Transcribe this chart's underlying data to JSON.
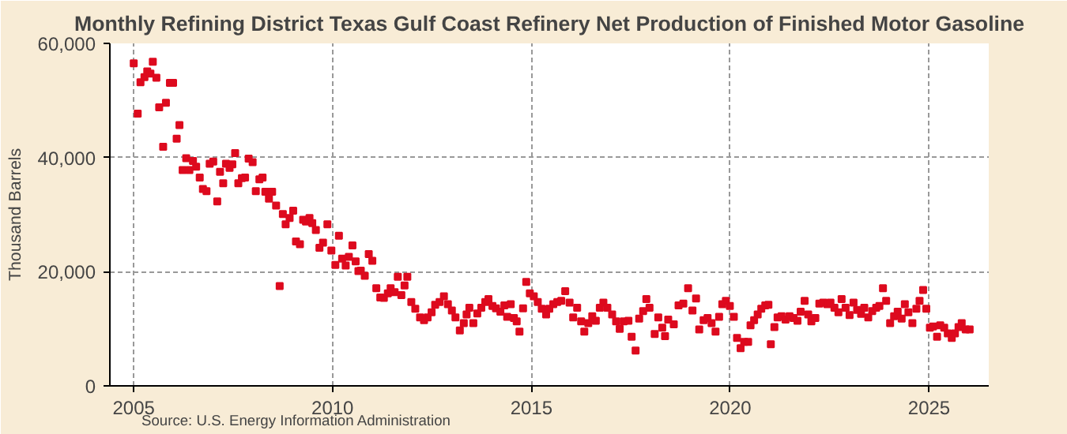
{
  "chart_data": {
    "type": "scatter",
    "title": "Monthly Refining District Texas Gulf Coast Refinery Net Production of Finished Motor Gasoline",
    "ylabel": "Thousand Barrels",
    "annotations": [
      "Source: U.S. Energy Information Administration"
    ],
    "xlim": [
      2004.4,
      2026.5
    ],
    "xticks": [
      2005,
      2010,
      2015,
      2020,
      2025
    ],
    "ylim": [
      0,
      60000
    ],
    "yticks": [
      {
        "value": 0,
        "label": "0"
      },
      {
        "value": 20000,
        "label": "20,000"
      },
      {
        "value": 40000,
        "label": "40,000"
      },
      {
        "value": 60000,
        "label": "60,000"
      }
    ],
    "grid": true,
    "marker": "square",
    "series": [
      {
        "color": "#dd0a1e",
        "x": [
          2005.0,
          2005.1,
          2005.17,
          2005.27,
          2005.34,
          2005.42,
          2005.48,
          2005.57,
          2005.64,
          2005.74,
          2005.81,
          2005.91,
          2005.99,
          2006.08,
          2006.15,
          2006.23,
          2006.32,
          2006.4,
          2006.49,
          2006.57,
          2006.66,
          2006.74,
          2006.83,
          2006.91,
          2007.0,
          2007.1,
          2007.17,
          2007.25,
          2007.32,
          2007.41,
          2007.48,
          2007.55,
          2007.63,
          2007.72,
          2007.8,
          2007.89,
          2007.99,
          2008.07,
          2008.16,
          2008.24,
          2008.31,
          2008.4,
          2008.48,
          2008.58,
          2008.67,
          2008.75,
          2008.82,
          2008.92,
          2009.01,
          2009.08,
          2009.18,
          2009.26,
          2009.33,
          2009.42,
          2009.49,
          2009.58,
          2009.67,
          2009.76,
          2009.87,
          2009.97,
          2010.07,
          2010.16,
          2010.24,
          2010.33,
          2010.41,
          2010.5,
          2010.58,
          2010.65,
          2010.71,
          2010.81,
          2010.91,
          2011.0,
          2011.1,
          2011.2,
          2011.29,
          2011.39,
          2011.46,
          2011.56,
          2011.64,
          2011.73,
          2011.81,
          2011.88,
          2011.98,
          2012.08,
          2012.2,
          2012.3,
          2012.39,
          2012.49,
          2012.58,
          2012.69,
          2012.8,
          2012.9,
          2013.0,
          2013.09,
          2013.2,
          2013.3,
          2013.37,
          2013.44,
          2013.54,
          2013.64,
          2013.74,
          2013.84,
          2013.92,
          2014.02,
          2014.11,
          2014.22,
          2014.32,
          2014.39,
          2014.48,
          2014.56,
          2014.63,
          2014.7,
          2014.79,
          2014.87,
          2014.96,
          2015.06,
          2015.16,
          2015.26,
          2015.37,
          2015.45,
          2015.55,
          2015.65,
          2015.75,
          2015.85,
          2015.96,
          2016.05,
          2016.15,
          2016.25,
          2016.33,
          2016.43,
          2016.53,
          2016.62,
          2016.72,
          2016.81,
          2016.91,
          2017.03,
          2017.13,
          2017.22,
          2017.32,
          2017.44,
          2017.52,
          2017.62,
          2017.71,
          2017.81,
          2017.89,
          2017.97,
          2018.1,
          2018.19,
          2018.29,
          2018.36,
          2018.44,
          2018.58,
          2018.7,
          2018.82,
          2018.94,
          2019.05,
          2019.14,
          2019.22,
          2019.33,
          2019.43,
          2019.53,
          2019.63,
          2019.72,
          2019.8,
          2019.89,
          2019.99,
          2020.09,
          2020.17,
          2020.26,
          2020.35,
          2020.45,
          2020.51,
          2020.6,
          2020.69,
          2020.78,
          2020.88,
          2020.96,
          2021.02,
          2021.11,
          2021.19,
          2021.29,
          2021.39,
          2021.49,
          2021.59,
          2021.69,
          2021.77,
          2021.87,
          2021.96,
          2022.04,
          2022.14,
          2022.24,
          2022.34,
          2022.44,
          2022.52,
          2022.62,
          2022.72,
          2022.8,
          2022.9,
          2023.0,
          2023.1,
          2023.19,
          2023.29,
          2023.37,
          2023.47,
          2023.57,
          2023.67,
          2023.75,
          2023.84,
          2023.92,
          2024.02,
          2024.12,
          2024.21,
          2024.31,
          2024.39,
          2024.48,
          2024.58,
          2024.68,
          2024.76,
          2024.85,
          2024.93,
          2025.02,
          2025.1,
          2025.2,
          2025.28,
          2025.38,
          2025.47,
          2025.57,
          2025.65,
          2025.74,
          2025.82,
          2025.92,
          2026.02
        ],
        "values": [
          56500,
          47700,
          53200,
          54100,
          55100,
          54700,
          56800,
          54000,
          48800,
          41900,
          49600,
          53100,
          53100,
          43300,
          45700,
          37800,
          39900,
          37800,
          39400,
          38400,
          36500,
          34500,
          34100,
          38900,
          39300,
          32300,
          37500,
          35500,
          38900,
          38200,
          38800,
          40800,
          35500,
          36400,
          36500,
          39800,
          39200,
          34100,
          36200,
          36500,
          34000,
          32800,
          34000,
          31600,
          17500,
          30100,
          28300,
          29400,
          30700,
          25300,
          24800,
          29100,
          28800,
          29400,
          28500,
          27300,
          24200,
          25100,
          28300,
          23700,
          21200,
          26300,
          22300,
          21100,
          22600,
          24600,
          21800,
          20100,
          20200,
          19300,
          23100,
          21900,
          17100,
          15500,
          15400,
          16200,
          17100,
          16400,
          19100,
          15900,
          17600,
          19100,
          14700,
          13500,
          12000,
          11500,
          12000,
          12900,
          14200,
          14700,
          15700,
          14300,
          13200,
          12000,
          9700,
          11000,
          12500,
          13700,
          11000,
          12700,
          13700,
          14700,
          15200,
          14000,
          13600,
          13000,
          14100,
          12100,
          14300,
          11900,
          11300,
          9500,
          13600,
          18200,
          16200,
          15700,
          14700,
          13500,
          12500,
          13500,
          14300,
          14700,
          14900,
          16600,
          14600,
          12000,
          13700,
          11300,
          9500,
          11000,
          12200,
          11400,
          13700,
          14600,
          13700,
          12500,
          11300,
          10000,
          11300,
          11400,
          8600,
          6200,
          11800,
          13100,
          15200,
          13700,
          9100,
          12000,
          10200,
          8700,
          11600,
          10800,
          14100,
          14400,
          17100,
          13200,
          15300,
          9900,
          11500,
          11900,
          11000,
          9500,
          12100,
          14300,
          14900,
          14000,
          12100,
          8400,
          6600,
          7700,
          7700,
          10600,
          11500,
          12500,
          13500,
          14100,
          14200,
          7300,
          10300,
          12000,
          12200,
          11600,
          12200,
          11900,
          11400,
          13000,
          14900,
          12500,
          11300,
          11900,
          14400,
          14600,
          14300,
          14600,
          13700,
          12900,
          15200,
          13700,
          12400,
          14600,
          13300,
          12600,
          13700,
          12000,
          13100,
          13700,
          14000,
          17100,
          14900,
          11000,
          12200,
          13000,
          11800,
          14300,
          12900,
          11000,
          13500,
          14900,
          16800,
          13500,
          10200,
          10400,
          8600,
          10600,
          10200,
          9200,
          8400,
          9200,
          10300,
          11000,
          9900,
          9900
        ]
      }
    ]
  }
}
